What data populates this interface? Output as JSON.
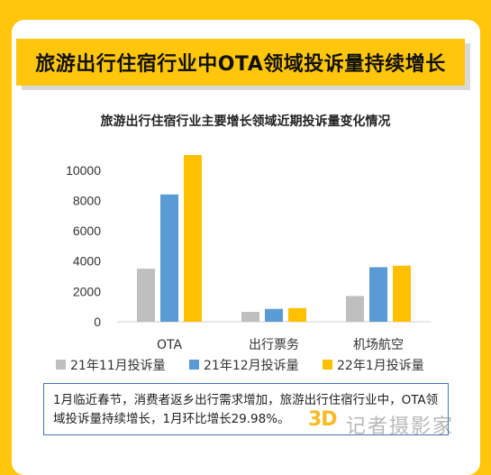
{
  "header": {
    "title": "旅游出行住宿行业中OTA领域投诉量持续增长"
  },
  "chart_data": {
    "type": "bar",
    "title": "旅游出行住宿行业主要增长领域近期投诉量变化情况",
    "categories": [
      "OTA",
      "出行票务",
      "机场航空"
    ],
    "series": [
      {
        "name": "21年11月投诉量",
        "color": "#BFBFBF",
        "values": [
          3500,
          650,
          1700
        ]
      },
      {
        "name": "21年12月投诉量",
        "color": "#5B9BD5",
        "values": [
          8400,
          850,
          3600
        ]
      },
      {
        "name": "22年1月投诉量",
        "color": "#FFC000",
        "values": [
          11000,
          900,
          3700
        ]
      }
    ],
    "yticks": [
      0,
      2000,
      4000,
      6000,
      8000,
      10000
    ],
    "ylim": [
      0,
      11000
    ],
    "legend": "bottom",
    "grid": false
  },
  "note": {
    "text": "1月临近春节，消费者返乡出行需求增加，旅游出行住宿行业中，OTA领域投诉量持续增长，1月环比增长29.98%。"
  },
  "watermark": {
    "logo": "3D",
    "text": "记者摄影家"
  }
}
